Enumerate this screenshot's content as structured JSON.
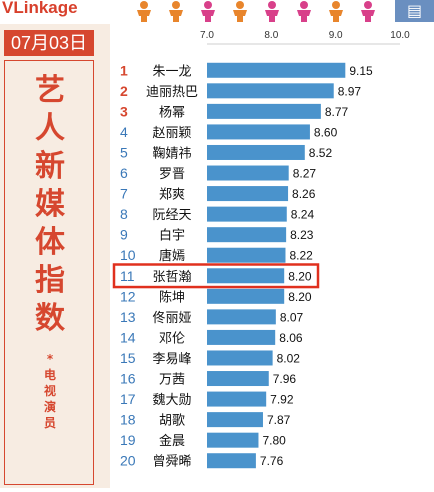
{
  "header": {
    "brand": "VLinkage",
    "brand_icon": "chart-icon",
    "people_colors": [
      "#e8852c",
      "#e8852c",
      "#d8408a",
      "#e8852c",
      "#d8408a",
      "#d8408a",
      "#e8852c",
      "#d8408a"
    ]
  },
  "sidebar": {
    "date": "07月03日",
    "title_chars": [
      "艺",
      "人",
      "新",
      "媒",
      "体",
      "指",
      "数"
    ],
    "subtitle_chars": [
      "*",
      "电",
      "视",
      "演",
      "员"
    ]
  },
  "colors": {
    "bar": "#4a93cc",
    "top_rank": "#d6472f",
    "rank": "#3a78b8",
    "highlight": "#e0301e"
  },
  "chart_data": {
    "type": "bar",
    "orientation": "horizontal",
    "xlim": [
      7.0,
      10.0
    ],
    "xticks": [
      "7.0",
      "8.0",
      "9.0",
      "10.0"
    ],
    "grid": false,
    "ranks": [
      "1",
      "2",
      "3",
      "4",
      "5",
      "6",
      "7",
      "8",
      "9",
      "10",
      "11",
      "12",
      "13",
      "14",
      "15",
      "16",
      "17",
      "18",
      "19",
      "20"
    ],
    "categories": [
      "朱一龙",
      "迪丽热巴",
      "杨幂",
      "赵丽颖",
      "鞠婧祎",
      "罗晋",
      "郑爽",
      "阮经天",
      "白宇",
      "唐嫣",
      "张哲瀚",
      "陈坤",
      "佟丽娅",
      "邓伦",
      "李易峰",
      "万茜",
      "魏大勋",
      "胡歌",
      "金晨",
      "曾舜晞"
    ],
    "values": [
      9.15,
      8.97,
      8.77,
      8.6,
      8.52,
      8.27,
      8.26,
      8.24,
      8.23,
      8.22,
      8.2,
      8.2,
      8.07,
      8.06,
      8.02,
      7.96,
      7.92,
      7.87,
      7.8,
      7.76
    ],
    "value_labels": [
      "9.15",
      "8.97",
      "8.77",
      "8.60",
      "8.52",
      "8.27",
      "8.26",
      "8.24",
      "8.23",
      "8.22",
      "8.20",
      "8.20",
      "8.07",
      "8.06",
      "8.02",
      "7.96",
      "7.92",
      "7.87",
      "7.80",
      "7.76"
    ],
    "highlighted_index": 10
  }
}
